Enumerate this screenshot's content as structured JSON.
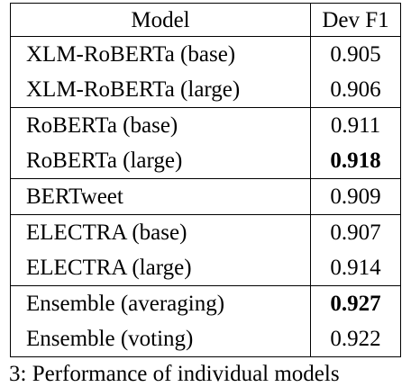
{
  "table": {
    "headers": [
      "Model",
      "Dev F1"
    ],
    "rows": [
      {
        "model": "XLM-RoBERTa (base)",
        "f1": "0.905",
        "best": false,
        "group_start": true
      },
      {
        "model": "XLM-RoBERTa (large)",
        "f1": "0.906",
        "best": false,
        "group_start": false
      },
      {
        "model": "RoBERTa (base)",
        "f1": "0.911",
        "best": false,
        "group_start": true
      },
      {
        "model": "RoBERTa (large)",
        "f1": "0.918",
        "best": true,
        "group_start": false
      },
      {
        "model": "BERTweet",
        "f1": "0.909",
        "best": false,
        "group_start": true
      },
      {
        "model": "ELECTRA (base)",
        "f1": "0.907",
        "best": false,
        "group_start": true
      },
      {
        "model": "ELECTRA (large)",
        "f1": "0.914",
        "best": false,
        "group_start": false
      },
      {
        "model": "Ensemble (averaging)",
        "f1": "0.927",
        "best": true,
        "group_start": true
      },
      {
        "model": "Ensemble (voting)",
        "f1": "0.922",
        "best": false,
        "group_start": false
      }
    ]
  },
  "caption_fragment": "3: Performance of individual models"
}
